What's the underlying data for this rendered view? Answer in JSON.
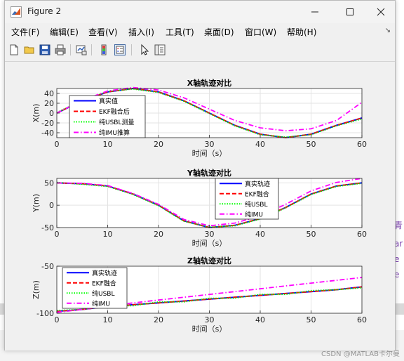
{
  "window": {
    "title": "Figure 2",
    "controls": {
      "minimize": "minimize",
      "maximize": "maximize",
      "close": "close"
    }
  },
  "menubar": {
    "items": [
      "文件(F)",
      "编辑(E)",
      "查看(V)",
      "插入(I)",
      "工具(T)",
      "桌面(D)",
      "窗口(W)",
      "帮助(H)"
    ]
  },
  "toolbar": {
    "icons": [
      "new-figure-icon",
      "open-file-icon",
      "save-icon",
      "print-icon",
      "link-plot-icon",
      "insert-colorbar-icon",
      "insert-legend-icon",
      "pointer-icon",
      "property-inspector-icon"
    ]
  },
  "background": {
    "side_chars": [
      "青",
      "ar",
      "e",
      "e"
    ],
    "watermark": "CSDN @MATLAB卡尔曼"
  },
  "colors": {
    "true": "#0000ff",
    "ekf": "#ff0000",
    "usbl": "#00ff00",
    "imu": "#ff00ff"
  },
  "chart_data": [
    {
      "type": "line",
      "title": "X轴轨迹对比",
      "xlabel": "时间（s）",
      "ylabel": "X(m)",
      "xlim": [
        0,
        60
      ],
      "ylim": [
        -50,
        50
      ],
      "xticks": [
        0,
        10,
        20,
        30,
        40,
        50,
        60
      ],
      "yticks": [
        40,
        20,
        0,
        -20,
        -40
      ],
      "grid": true,
      "legend_position": "top-left",
      "x": [
        0,
        5,
        10,
        15,
        20,
        25,
        30,
        35,
        40,
        45,
        50,
        55,
        60
      ],
      "series": [
        {
          "name": "真实值",
          "style": "solid",
          "color_key": "true",
          "values": [
            0,
            25,
            43,
            50,
            43,
            25,
            0,
            -25,
            -43,
            -50,
            -43,
            -25,
            -10
          ]
        },
        {
          "name": "EKF融合后",
          "style": "dashed",
          "color_key": "ekf",
          "values": [
            0,
            25,
            43,
            50,
            43,
            25,
            0,
            -25,
            -43,
            -50,
            -43,
            -25,
            -10
          ]
        },
        {
          "name": "纯USBL测量",
          "style": "dotted",
          "color_key": "usbl",
          "values": [
            1,
            26,
            44,
            49,
            42,
            24,
            -1,
            -26,
            -44,
            -49,
            -44,
            -26,
            -12
          ]
        },
        {
          "name": "纯IMU推算",
          "style": "dashdot",
          "color_key": "imu",
          "values": [
            0,
            26,
            45,
            52,
            47,
            31,
            8,
            -15,
            -30,
            -36,
            -32,
            -15,
            22
          ]
        }
      ]
    },
    {
      "type": "line",
      "title": "Y轴轨迹对比",
      "xlabel": "时间（s）",
      "ylabel": "Y(m)",
      "xlim": [
        0,
        60
      ],
      "ylim": [
        -50,
        60
      ],
      "xticks": [
        0,
        10,
        20,
        30,
        40,
        50,
        60
      ],
      "yticks": [
        50,
        0,
        -50
      ],
      "grid": true,
      "legend_position": "top-right",
      "x": [
        0,
        5,
        10,
        15,
        20,
        25,
        30,
        35,
        40,
        45,
        50,
        55,
        60
      ],
      "series": [
        {
          "name": "真实轨迹",
          "style": "solid",
          "color_key": "true",
          "values": [
            50,
            48,
            43,
            25,
            0,
            -35,
            -50,
            -45,
            -30,
            -5,
            25,
            43,
            50
          ]
        },
        {
          "name": "EKF融合",
          "style": "dashed",
          "color_key": "ekf",
          "values": [
            50,
            48,
            43,
            25,
            0,
            -35,
            -50,
            -45,
            -30,
            -5,
            25,
            43,
            50
          ]
        },
        {
          "name": "纯USBL",
          "style": "dotted",
          "color_key": "usbl",
          "values": [
            51,
            47,
            42,
            24,
            -1,
            -36,
            -49,
            -46,
            -31,
            -6,
            24,
            42,
            49
          ]
        },
        {
          "name": "纯IMU",
          "style": "dashdot",
          "color_key": "imu",
          "values": [
            50,
            49,
            44,
            26,
            2,
            -32,
            -46,
            -40,
            -24,
            2,
            32,
            51,
            60
          ]
        }
      ]
    },
    {
      "type": "line",
      "title": "Z轴轨迹对比",
      "xlabel": "时间（s）",
      "ylabel": "Z(m)",
      "xlim": [
        0,
        60
      ],
      "ylim": [
        -100,
        -50
      ],
      "xticks": [
        0,
        10,
        20,
        30,
        40,
        50,
        60
      ],
      "yticks": [
        -50,
        -100
      ],
      "grid": true,
      "legend_position": "top-left",
      "x": [
        0,
        5,
        10,
        15,
        20,
        25,
        30,
        35,
        40,
        45,
        50,
        55,
        60
      ],
      "series": [
        {
          "name": "真实轨迹",
          "style": "solid",
          "color_key": "true",
          "values": [
            -98,
            -96,
            -93,
            -91,
            -89,
            -87,
            -85,
            -83,
            -81,
            -79,
            -77,
            -75,
            -72
          ]
        },
        {
          "name": "EKF融合",
          "style": "dashed",
          "color_key": "ekf",
          "values": [
            -98,
            -96,
            -93,
            -91,
            -89,
            -87,
            -85,
            -83,
            -81,
            -79,
            -77,
            -75,
            -72
          ]
        },
        {
          "name": "纯USBL",
          "style": "dotted",
          "color_key": "usbl",
          "values": [
            -97,
            -96,
            -92,
            -92,
            -88,
            -88,
            -84,
            -84,
            -80,
            -80,
            -76,
            -75,
            -73
          ]
        },
        {
          "name": "纯IMU",
          "style": "dashdot",
          "color_key": "imu",
          "values": [
            -99,
            -96,
            -92,
            -89,
            -86,
            -83,
            -80,
            -77,
            -74,
            -71,
            -68,
            -65,
            -62
          ]
        }
      ]
    }
  ]
}
